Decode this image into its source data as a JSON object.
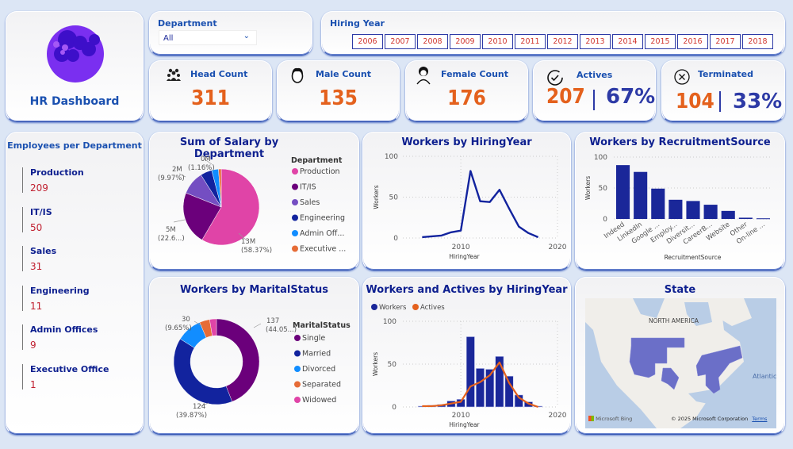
{
  "header": {
    "title": "HR Dashboard"
  },
  "filters": {
    "department": {
      "label": "Department",
      "value": "All"
    },
    "hiring_year": {
      "label": "Hiring Year",
      "years": [
        "2006",
        "2007",
        "2008",
        "2009",
        "2010",
        "2011",
        "2012",
        "2013",
        "2014",
        "2015",
        "2016",
        "2017",
        "2018"
      ]
    }
  },
  "kpis": {
    "head_count": {
      "label": "Head Count",
      "value": "311"
    },
    "male_count": {
      "label": "Male Count",
      "value": "135"
    },
    "female_count": {
      "label": "Female Count",
      "value": "176"
    },
    "actives": {
      "label": "Actives",
      "value": "207",
      "pct": "67%"
    },
    "terminated": {
      "label": "Terminated",
      "value": "104",
      "pct": "33%"
    }
  },
  "employees_per_department": {
    "title": "Employees per Department",
    "items": [
      {
        "name": "Production",
        "value": "209"
      },
      {
        "name": "IT/IS",
        "value": "50"
      },
      {
        "name": "Sales",
        "value": "31"
      },
      {
        "name": "Engineering",
        "value": "11"
      },
      {
        "name": "Admin Offices",
        "value": "9"
      },
      {
        "name": "Executive Office",
        "value": "1"
      }
    ]
  },
  "colors": {
    "orange": "#e4611d",
    "navy": "#1a2799",
    "title": "#0d1f8f"
  },
  "chart_data": [
    {
      "id": "salary",
      "type": "pie",
      "title": "Sum of Salary by Department",
      "legend_title": "Department",
      "legend_position": "right",
      "categories": [
        "Production",
        "IT/IS",
        "Sales",
        "Engineering",
        "Admin Offices",
        "Executive Office"
      ],
      "legend_labels": [
        "Production",
        "IT/IS",
        "Sales",
        "Engineering",
        "Admin Off...",
        "Executive ..."
      ],
      "values_pct": [
        58.37,
        22.6,
        9.97,
        4.9,
        2.9,
        1.16
      ],
      "colors": [
        "#e044a7",
        "#6b007b",
        "#744ec2",
        "#12239e",
        "#118dff",
        "#e66c37"
      ],
      "data_labels": [
        {
          "line1": "13M",
          "line2": "(58.37%)"
        },
        {
          "line1": "5M",
          "line2": "(22.6...)"
        },
        {
          "line1": "2M",
          "line2": "(9.97%)"
        },
        {
          "line1": "0M",
          "line2": "(1.16%)"
        }
      ]
    },
    {
      "id": "hiring_line",
      "type": "line",
      "title": "Workers by HiringYear",
      "xlabel": "HiringYear",
      "ylabel": "Workers",
      "x": [
        2006,
        2007,
        2008,
        2009,
        2010,
        2011,
        2012,
        2013,
        2014,
        2015,
        2016,
        2017,
        2018
      ],
      "values": [
        1,
        2,
        3,
        7,
        9,
        82,
        45,
        44,
        59,
        36,
        14,
        6,
        1
      ],
      "xlim": [
        2004,
        2020
      ],
      "ylim": [
        0,
        100
      ],
      "xticks": [
        "2010",
        "2020"
      ],
      "yticks": [
        "0",
        "50",
        "100"
      ],
      "color": "#12239e"
    },
    {
      "id": "recruitment",
      "type": "bar",
      "title": "Workers by RecruitmentSource",
      "xlabel": "RecruitmentSource",
      "ylabel": "Workers",
      "categories": [
        "Indeed",
        "LinkedIn",
        "Google ...",
        "Employ...",
        "Diversit...",
        "CareerB...",
        "Website",
        "Other",
        "On-line ..."
      ],
      "values": [
        87,
        76,
        49,
        31,
        29,
        23,
        13,
        2,
        1
      ],
      "ylim": [
        0,
        100
      ],
      "yticks": [
        "0",
        "50",
        "100"
      ],
      "color": "#1a2799"
    },
    {
      "id": "marital",
      "type": "pie",
      "title": "Workers by MaritalStatus",
      "legend_title": "MaritalStatus",
      "legend_position": "right",
      "categories": [
        "Single",
        "Married",
        "Divorced",
        "Separated",
        "Widowed"
      ],
      "values": [
        137,
        124,
        30,
        12,
        8
      ],
      "colors": [
        "#6b007b",
        "#12239e",
        "#118dff",
        "#e66c37",
        "#e044a7"
      ],
      "data_labels": [
        {
          "line1": "137",
          "line2": "(44.05...)"
        },
        {
          "line1": "124",
          "line2": "(39.87%)"
        },
        {
          "line1": "30",
          "line2": "(9.65%)"
        }
      ]
    },
    {
      "id": "workers_actives",
      "type": "bar",
      "title": "Workers and Actives by HiringYear",
      "xlabel": "HiringYear",
      "ylabel": "Workers",
      "x": [
        2006,
        2007,
        2008,
        2009,
        2010,
        2011,
        2012,
        2013,
        2014,
        2015,
        2016,
        2017,
        2018
      ],
      "series": [
        {
          "name": "Workers",
          "type": "bar",
          "values": [
            1,
            2,
            3,
            7,
            9,
            82,
            45,
            44,
            59,
            36,
            14,
            6,
            1
          ],
          "color": "#1a2799"
        },
        {
          "name": "Actives",
          "type": "line",
          "values": [
            1,
            1,
            2,
            4,
            6,
            24,
            29,
            37,
            52,
            28,
            11,
            4,
            0
          ],
          "color": "#e4611d"
        }
      ],
      "xlim": [
        2004,
        2020
      ],
      "ylim": [
        0,
        100
      ],
      "xticks": [
        "2010",
        "2020"
      ],
      "yticks": [
        "0",
        "50",
        "100"
      ]
    }
  ],
  "map": {
    "title": "State",
    "continent_label": "NORTH AMERICA",
    "ocean_label": "Atlantic",
    "provider": "Microsoft Bing",
    "copyright": "© 2025 Microsoft Corporation",
    "terms": "Terms"
  }
}
